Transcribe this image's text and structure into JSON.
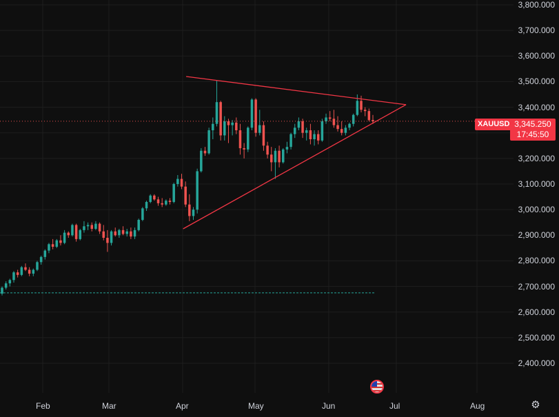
{
  "symbol": "XAUUSD",
  "current_price_label": "3,345.250",
  "countdown": "17:45:50",
  "colors": {
    "up": "#26a69a",
    "down": "#ef5350",
    "pattern": "#f23645",
    "background": "#0f0f0f",
    "grid": "#1e1e1e",
    "text": "#d1d4dc"
  },
  "icons": {
    "settings": "gear-icon",
    "event": "us-flag-icon"
  },
  "chart_data": {
    "type": "candlestick",
    "y_axis": {
      "range": [
        2330,
        3815
      ],
      "ticks": [
        2400,
        2500,
        2600,
        2700,
        2800,
        2900,
        3000,
        3100,
        3200,
        3300,
        3400,
        3500,
        3600,
        3700,
        3800
      ],
      "tick_labels": [
        "2,400.000",
        "2,500.000",
        "2,600.000",
        "2,700.000",
        "2,800.000",
        "2,900.000",
        "3,000.000",
        "3,100.000",
        "3,200.000",
        "3,300.000",
        "3,400.000",
        "3,500.000",
        "3,600.000",
        "3,700.000",
        "3,800.000"
      ]
    },
    "x_axis": {
      "labels": [
        "Feb",
        "Mar",
        "Apr",
        "May",
        "Jun",
        "Jul",
        "Aug"
      ]
    },
    "current_price": 3345.25,
    "horizontal_line": 2675,
    "triangle": {
      "upper": [
        [
          3520,
          0.3625
        ],
        [
          3410,
          0.7907
        ]
      ],
      "lower": [
        [
          2925,
          0.3566
        ],
        [
          3410,
          0.7907
        ]
      ]
    },
    "series": [
      {
        "o": 2672,
        "h": 2700,
        "l": 2665,
        "c": 2695
      },
      {
        "o": 2695,
        "h": 2720,
        "l": 2688,
        "c": 2712
      },
      {
        "o": 2712,
        "h": 2730,
        "l": 2700,
        "c": 2725
      },
      {
        "o": 2725,
        "h": 2760,
        "l": 2715,
        "c": 2755
      },
      {
        "o": 2755,
        "h": 2765,
        "l": 2735,
        "c": 2745
      },
      {
        "o": 2745,
        "h": 2780,
        "l": 2740,
        "c": 2775
      },
      {
        "o": 2775,
        "h": 2790,
        "l": 2760,
        "c": 2765
      },
      {
        "o": 2765,
        "h": 2775,
        "l": 2740,
        "c": 2750
      },
      {
        "o": 2750,
        "h": 2770,
        "l": 2740,
        "c": 2765
      },
      {
        "o": 2765,
        "h": 2800,
        "l": 2760,
        "c": 2795
      },
      {
        "o": 2795,
        "h": 2820,
        "l": 2785,
        "c": 2815
      },
      {
        "o": 2815,
        "h": 2845,
        "l": 2805,
        "c": 2840
      },
      {
        "o": 2840,
        "h": 2870,
        "l": 2830,
        "c": 2865
      },
      {
        "o": 2865,
        "h": 2885,
        "l": 2845,
        "c": 2855
      },
      {
        "o": 2855,
        "h": 2885,
        "l": 2850,
        "c": 2880
      },
      {
        "o": 2880,
        "h": 2900,
        "l": 2860,
        "c": 2870
      },
      {
        "o": 2870,
        "h": 2920,
        "l": 2865,
        "c": 2910
      },
      {
        "o": 2910,
        "h": 2915,
        "l": 2890,
        "c": 2900
      },
      {
        "o": 2900,
        "h": 2945,
        "l": 2895,
        "c": 2940
      },
      {
        "o": 2940,
        "h": 2945,
        "l": 2875,
        "c": 2885
      },
      {
        "o": 2885,
        "h": 2925,
        "l": 2880,
        "c": 2920
      },
      {
        "o": 2920,
        "h": 2955,
        "l": 2910,
        "c": 2935
      },
      {
        "o": 2935,
        "h": 2950,
        "l": 2920,
        "c": 2940
      },
      {
        "o": 2940,
        "h": 2950,
        "l": 2915,
        "c": 2925
      },
      {
        "o": 2925,
        "h": 2955,
        "l": 2920,
        "c": 2945
      },
      {
        "o": 2945,
        "h": 2950,
        "l": 2905,
        "c": 2915
      },
      {
        "o": 2915,
        "h": 2940,
        "l": 2880,
        "c": 2890
      },
      {
        "o": 2890,
        "h": 2920,
        "l": 2835,
        "c": 2870
      },
      {
        "o": 2870,
        "h": 2920,
        "l": 2860,
        "c": 2915
      },
      {
        "o": 2915,
        "h": 2930,
        "l": 2895,
        "c": 2900
      },
      {
        "o": 2900,
        "h": 2925,
        "l": 2890,
        "c": 2920
      },
      {
        "o": 2920,
        "h": 2935,
        "l": 2900,
        "c": 2905
      },
      {
        "o": 2905,
        "h": 2925,
        "l": 2895,
        "c": 2915
      },
      {
        "o": 2915,
        "h": 2930,
        "l": 2885,
        "c": 2895
      },
      {
        "o": 2895,
        "h": 2930,
        "l": 2885,
        "c": 2920
      },
      {
        "o": 2920,
        "h": 2965,
        "l": 2915,
        "c": 2960
      },
      {
        "o": 2960,
        "h": 3010,
        "l": 2955,
        "c": 3005
      },
      {
        "o": 3005,
        "h": 3035,
        "l": 2995,
        "c": 3030
      },
      {
        "o": 3030,
        "h": 3060,
        "l": 3025,
        "c": 3055
      },
      {
        "o": 3055,
        "h": 3060,
        "l": 3035,
        "c": 3040
      },
      {
        "o": 3040,
        "h": 3050,
        "l": 3015,
        "c": 3025
      },
      {
        "o": 3025,
        "h": 3045,
        "l": 3010,
        "c": 3020
      },
      {
        "o": 3020,
        "h": 3040,
        "l": 3015,
        "c": 3035
      },
      {
        "o": 3035,
        "h": 3045,
        "l": 3020,
        "c": 3030
      },
      {
        "o": 3030,
        "h": 3105,
        "l": 3025,
        "c": 3100
      },
      {
        "o": 3100,
        "h": 3135,
        "l": 3090,
        "c": 3120
      },
      {
        "o": 3120,
        "h": 3140,
        "l": 3080,
        "c": 3090
      },
      {
        "o": 3090,
        "h": 3110,
        "l": 3010,
        "c": 3020
      },
      {
        "o": 3020,
        "h": 3060,
        "l": 2955,
        "c": 2975
      },
      {
        "o": 2975,
        "h": 3010,
        "l": 2960,
        "c": 3000
      },
      {
        "o": 3000,
        "h": 3160,
        "l": 2985,
        "c": 3150
      },
      {
        "o": 3150,
        "h": 3240,
        "l": 3145,
        "c": 3230
      },
      {
        "o": 3230,
        "h": 3245,
        "l": 3210,
        "c": 3220
      },
      {
        "o": 3220,
        "h": 3320,
        "l": 3215,
        "c": 3310
      },
      {
        "o": 3310,
        "h": 3360,
        "l": 3275,
        "c": 3335
      },
      {
        "o": 3335,
        "h": 3505,
        "l": 3325,
        "c": 3420
      },
      {
        "o": 3420,
        "h": 3425,
        "l": 3270,
        "c": 3290
      },
      {
        "o": 3290,
        "h": 3365,
        "l": 3270,
        "c": 3345
      },
      {
        "o": 3345,
        "h": 3355,
        "l": 3260,
        "c": 3330
      },
      {
        "o": 3330,
        "h": 3350,
        "l": 3290,
        "c": 3340
      },
      {
        "o": 3340,
        "h": 3360,
        "l": 3295,
        "c": 3310
      },
      {
        "o": 3310,
        "h": 3335,
        "l": 3215,
        "c": 3240
      },
      {
        "o": 3240,
        "h": 3260,
        "l": 3200,
        "c": 3235
      },
      {
        "o": 3235,
        "h": 3325,
        "l": 3225,
        "c": 3320
      },
      {
        "o": 3320,
        "h": 3435,
        "l": 3310,
        "c": 3430
      },
      {
        "o": 3430,
        "h": 3435,
        "l": 3285,
        "c": 3300
      },
      {
        "o": 3300,
        "h": 3390,
        "l": 3290,
        "c": 3330
      },
      {
        "o": 3330,
        "h": 3345,
        "l": 3230,
        "c": 3250
      },
      {
        "o": 3250,
        "h": 3265,
        "l": 3200,
        "c": 3215
      },
      {
        "o": 3215,
        "h": 3245,
        "l": 3150,
        "c": 3185
      },
      {
        "o": 3185,
        "h": 3240,
        "l": 3120,
        "c": 3230
      },
      {
        "o": 3230,
        "h": 3250,
        "l": 3165,
        "c": 3185
      },
      {
        "o": 3185,
        "h": 3240,
        "l": 3180,
        "c": 3235
      },
      {
        "o": 3235,
        "h": 3265,
        "l": 3220,
        "c": 3245
      },
      {
        "o": 3245,
        "h": 3300,
        "l": 3235,
        "c": 3295
      },
      {
        "o": 3295,
        "h": 3335,
        "l": 3280,
        "c": 3320
      },
      {
        "o": 3320,
        "h": 3360,
        "l": 3310,
        "c": 3345
      },
      {
        "o": 3345,
        "h": 3355,
        "l": 3280,
        "c": 3300
      },
      {
        "o": 3300,
        "h": 3320,
        "l": 3270,
        "c": 3310
      },
      {
        "o": 3310,
        "h": 3335,
        "l": 3255,
        "c": 3275
      },
      {
        "o": 3275,
        "h": 3310,
        "l": 3250,
        "c": 3295
      },
      {
        "o": 3295,
        "h": 3310,
        "l": 3255,
        "c": 3270
      },
      {
        "o": 3270,
        "h": 3355,
        "l": 3265,
        "c": 3345
      },
      {
        "o": 3345,
        "h": 3375,
        "l": 3335,
        "c": 3360
      },
      {
        "o": 3360,
        "h": 3385,
        "l": 3345,
        "c": 3355
      },
      {
        "o": 3355,
        "h": 3390,
        "l": 3320,
        "c": 3330
      },
      {
        "o": 3330,
        "h": 3365,
        "l": 3305,
        "c": 3315
      },
      {
        "o": 3315,
        "h": 3345,
        "l": 3290,
        "c": 3300
      },
      {
        "o": 3300,
        "h": 3330,
        "l": 3290,
        "c": 3320
      },
      {
        "o": 3320,
        "h": 3340,
        "l": 3310,
        "c": 3335
      },
      {
        "o": 3335,
        "h": 3375,
        "l": 3325,
        "c": 3370
      },
      {
        "o": 3370,
        "h": 3450,
        "l": 3365,
        "c": 3425
      },
      {
        "o": 3425,
        "h": 3445,
        "l": 3380,
        "c": 3390
      },
      {
        "o": 3390,
        "h": 3400,
        "l": 3365,
        "c": 3385
      },
      {
        "o": 3385,
        "h": 3395,
        "l": 3345,
        "c": 3350
      },
      {
        "o": 3350,
        "h": 3370,
        "l": 3335,
        "c": 3345
      }
    ]
  }
}
